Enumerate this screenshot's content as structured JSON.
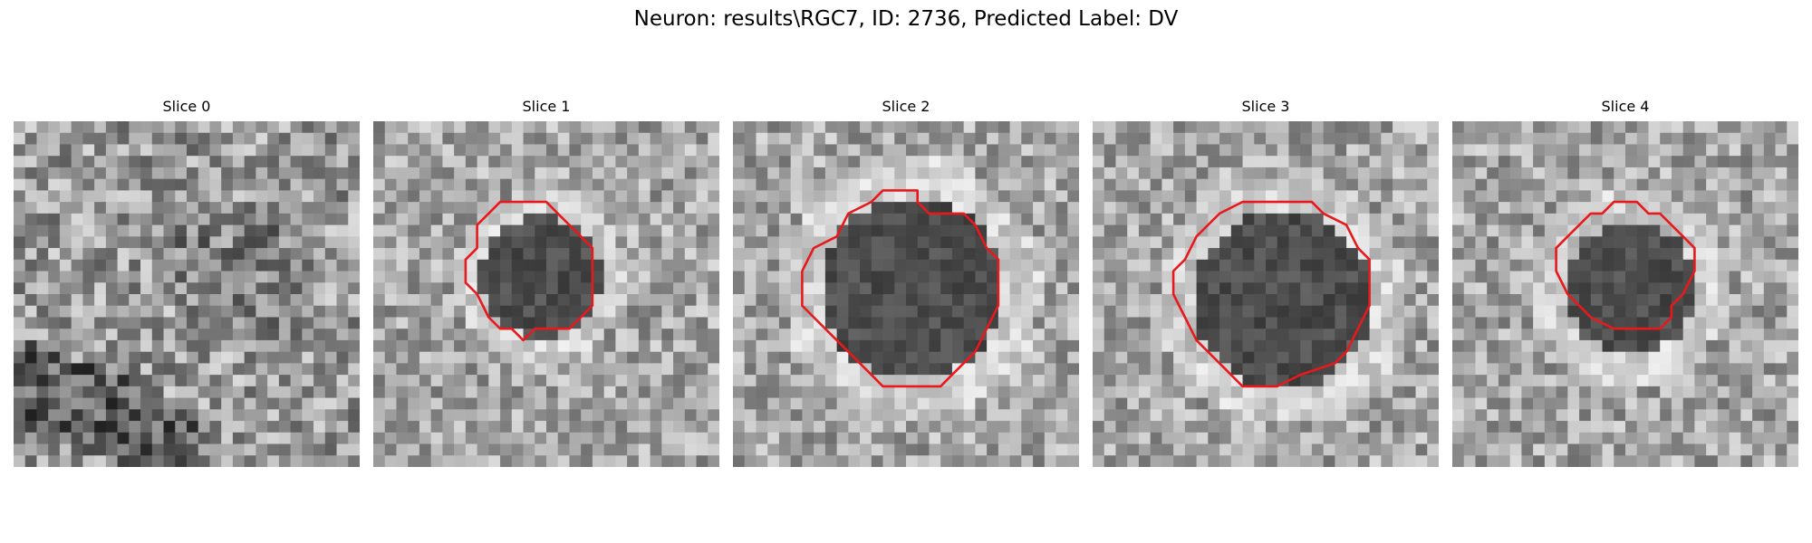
{
  "figure": {
    "title": "Neuron: results\\RGC7, ID: 2736, Predicted Label: DV",
    "contour_color": "#e8191c",
    "colormap": "gray"
  },
  "panels": [
    {
      "title": "Slice 0",
      "has_contour": false
    },
    {
      "title": "Slice 1",
      "has_contour": true
    },
    {
      "title": "Slice 2",
      "has_contour": true
    },
    {
      "title": "Slice 3",
      "has_contour": true
    },
    {
      "title": "Slice 4",
      "has_contour": true
    }
  ]
}
